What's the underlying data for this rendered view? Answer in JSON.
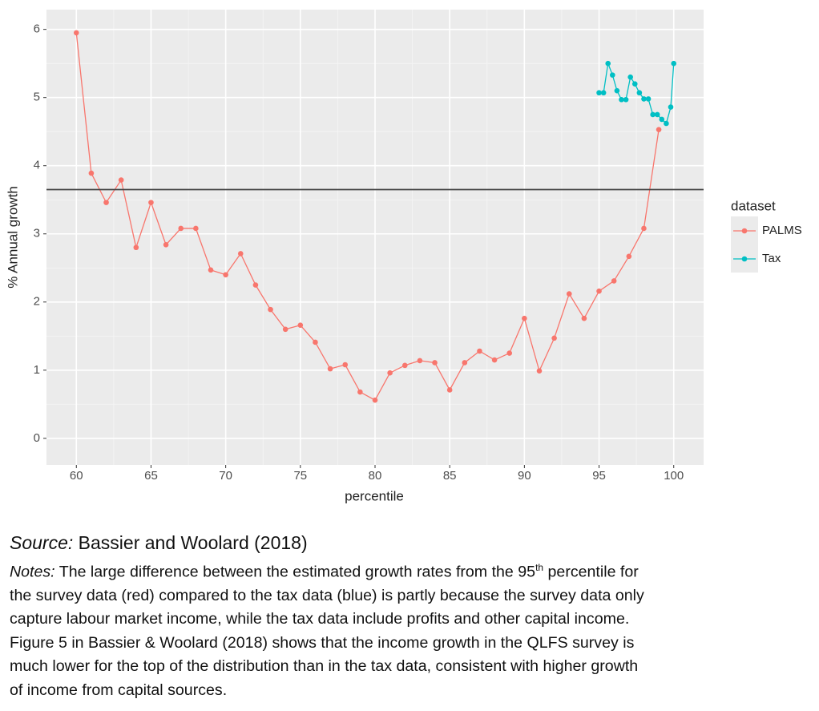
{
  "chart_data": {
    "type": "line",
    "x_label": "percentile",
    "y_label": "% Annual growth",
    "legend_title": "dataset",
    "legend_position": "right",
    "xlim": [
      58,
      102
    ],
    "ylim": [
      -0.39,
      6.29
    ],
    "xticks": [
      60,
      65,
      70,
      75,
      80,
      85,
      90,
      95,
      100
    ],
    "yticks": [
      0,
      1,
      2,
      3,
      4,
      5,
      6
    ],
    "xminor": [
      62.5,
      67.5,
      72.5,
      77.5,
      82.5,
      87.5,
      92.5,
      97.5
    ],
    "yminor": [
      0.5,
      1.5,
      2.5,
      3.5,
      4.5,
      5.5
    ],
    "grid": true,
    "hline": 3.65,
    "series": [
      {
        "name": "PALMS",
        "color": "#f8766d",
        "x": [
          60,
          61,
          62,
          63,
          64,
          65,
          66,
          67,
          68,
          69,
          70,
          71,
          72,
          73,
          74,
          75,
          76,
          77,
          78,
          79,
          80,
          81,
          82,
          83,
          84,
          85,
          86,
          87,
          88,
          89,
          90,
          91,
          92,
          93,
          94,
          95,
          96,
          97,
          98,
          99
        ],
        "values": [
          5.95,
          3.89,
          3.46,
          3.79,
          2.8,
          3.46,
          2.84,
          3.08,
          3.08,
          2.47,
          2.4,
          2.71,
          2.25,
          1.89,
          1.6,
          1.66,
          1.41,
          1.02,
          1.08,
          0.68,
          0.56,
          0.96,
          1.07,
          1.14,
          1.11,
          0.71,
          1.11,
          1.28,
          1.15,
          1.25,
          1.76,
          0.99,
          1.47,
          2.12,
          1.76,
          2.16,
          2.31,
          2.67,
          3.08,
          4.53
        ]
      },
      {
        "name": "Tax",
        "color": "#00bfc4",
        "x": [
          95,
          95.3,
          95.6,
          95.9,
          96.2,
          96.5,
          96.8,
          97.1,
          97.4,
          97.7,
          98,
          98.3,
          98.6,
          98.9,
          99.2,
          99.5,
          99.8,
          100
        ],
        "values": [
          5.07,
          5.07,
          5.5,
          5.33,
          5.1,
          4.97,
          4.97,
          5.3,
          5.2,
          5.07,
          4.98,
          4.98,
          4.75,
          4.75,
          4.68,
          4.62,
          4.86,
          5.5
        ]
      }
    ]
  },
  "caption": {
    "source_label": "Source:",
    "source_text": " Bassier and Woolard (2018)",
    "notes_label": "Notes:",
    "notes_first": " The large difference between the estimated growth rates from the 95",
    "notes_sup": "th",
    "notes_first_end": " percentile for",
    "notes_lines": [
      "the survey data (red) compared to the tax data (blue) is partly because the survey data only",
      "capture labour market income, while the tax data include profits and other capital income.",
      "Figure 5 in Bassier & Woolard (2018) shows that the income growth in the QLFS survey is",
      "much lower for the top of the distribution than in the tax data, consistent with higher growth",
      "of income from capital sources."
    ]
  }
}
